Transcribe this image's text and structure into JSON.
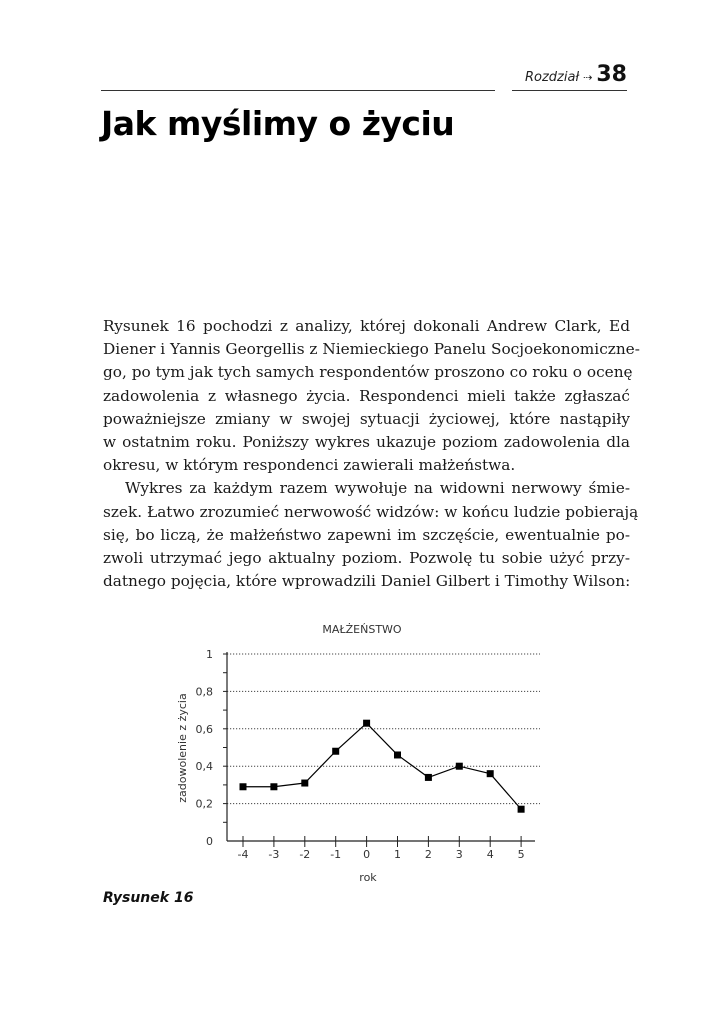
{
  "header": {
    "chapter_label": "Rozdział",
    "arrow": "⇢",
    "chapter_number": "38"
  },
  "title": "Jak myślimy o  życiu",
  "body": {
    "paragraph1": [
      "Rysunek 16 pochodzi z analizy, której dokonali Andrew Clark, Ed",
      "Diener i Yannis Georgellis z Niemieckiego Panelu Socjoekonomiczne-",
      "go, po tym jak tych samych respondentów proszono co roku o ocenę",
      "zadowolenia z własnego życia. Respondenci mieli także zgłaszać",
      "poważniejsze zmiany w swojej sytuacji życiowej, które nastąpiły",
      "w ostatnim roku. Poniższy wykres ukazuje poziom zadowolenia dla",
      "okresu, w którym respondenci zawierali małżeństwa."
    ],
    "paragraph2": [
      "Wykres za każdym razem wywołuje na widowni nerwowy śmie-",
      "szek. Łatwo zrozumieć nerwowość widzów: w końcu ludzie pobierają",
      "się, bo liczą, że małżeństwo zapewni im szczęście, ewentualnie po-",
      "zwoli utrzymać jego aktualny poziom. Pozwolę tu sobie użyć przy-",
      "datnego pojęcia, które wprowadzili Daniel Gilbert i Timothy Wilson:"
    ]
  },
  "chart_data": {
    "type": "line",
    "title": "MAŁŻEŃSTWO",
    "xlabel": "rok",
    "ylabel": "zadowolenie z życia",
    "x": [
      -4,
      -3,
      -2,
      -1,
      0,
      1,
      2,
      3,
      4,
      5
    ],
    "x_tick_labels": [
      "-4",
      "-3",
      "-2",
      "-1",
      "0",
      "1",
      "2",
      "3",
      "4",
      "5"
    ],
    "y": [
      0.29,
      0.29,
      0.31,
      0.48,
      0.63,
      0.46,
      0.34,
      0.4,
      0.36,
      0.17
    ],
    "ylim": [
      0,
      1
    ],
    "y_ticks": [
      0,
      0.2,
      0.4,
      0.6,
      0.8,
      1
    ],
    "y_tick_labels": [
      "0",
      "0,2",
      "0,4",
      "0,6",
      "0,8",
      "1"
    ],
    "grid": "horizontal dotted",
    "marker": "square",
    "color": "#000000"
  },
  "caption": "Rysunek 16"
}
